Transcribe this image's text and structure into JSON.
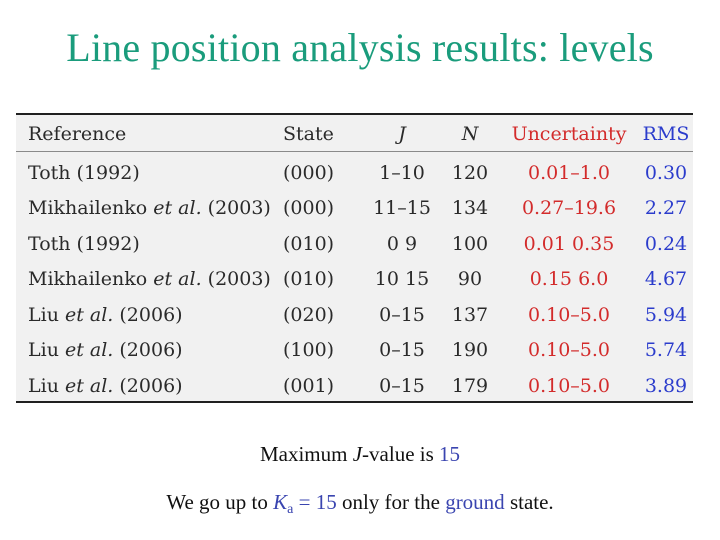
{
  "slide": {
    "title": "Line position analysis results: levels"
  },
  "table": {
    "headers": {
      "reference": "Reference",
      "state": "State",
      "j": "J",
      "n": "N",
      "uncertainty": "Uncertainty",
      "rms": "RMS"
    },
    "rows": [
      {
        "ref_pre": "Toth (1992)",
        "ref_italic": "",
        "ref_post": "",
        "state": "(000)",
        "j": "1–10",
        "n": "120",
        "uncertainty": "0.01–1.0",
        "rms": "0.30"
      },
      {
        "ref_pre": "Mikhailenko ",
        "ref_italic": "et al.",
        "ref_post": " (2003)",
        "state": "(000)",
        "j": "11–15",
        "n": "134",
        "uncertainty": "0.27–19.6",
        "rms": "2.27"
      },
      {
        "ref_pre": "Toth (1992)",
        "ref_italic": "",
        "ref_post": "",
        "state": "(010)",
        "j": "0 9",
        "n": "100",
        "uncertainty": "0.01 0.35",
        "rms": "0.24"
      },
      {
        "ref_pre": "Mikhailenko ",
        "ref_italic": "et al.",
        "ref_post": " (2003)",
        "state": "(010)",
        "j": "10 15",
        "n": "90",
        "uncertainty": "0.15 6.0",
        "rms": "4.67"
      },
      {
        "ref_pre": "Liu ",
        "ref_italic": "et al.",
        "ref_post": " (2006)",
        "state": "(020)",
        "j": "0–15",
        "n": "137",
        "uncertainty": "0.10–5.0",
        "rms": "5.94"
      },
      {
        "ref_pre": "Liu ",
        "ref_italic": "et al.",
        "ref_post": " (2006)",
        "state": "(100)",
        "j": "0–15",
        "n": "190",
        "uncertainty": "0.10–5.0",
        "rms": "5.74"
      },
      {
        "ref_pre": "Liu ",
        "ref_italic": "et al.",
        "ref_post": " (2006)",
        "state": "(001)",
        "j": "0–15",
        "n": "179",
        "uncertainty": "0.10–5.0",
        "rms": "3.89"
      }
    ]
  },
  "notes": {
    "line1_prefix": "Maximum ",
    "line1_j": "J",
    "line1_mid": "-value is ",
    "line1_value": "15",
    "line2_prefix": "We go up to ",
    "line2_k": "K",
    "line2_sub": "a",
    "line2_eq": " = 15",
    "line2_mid": " only for the ",
    "line2_ground": "ground",
    "line2_suffix": " state."
  },
  "colors": {
    "title": "#1a9c7c",
    "uncertainty": "#d32b2b",
    "rms": "#2b3ccc",
    "accent": "#3a45b0"
  }
}
